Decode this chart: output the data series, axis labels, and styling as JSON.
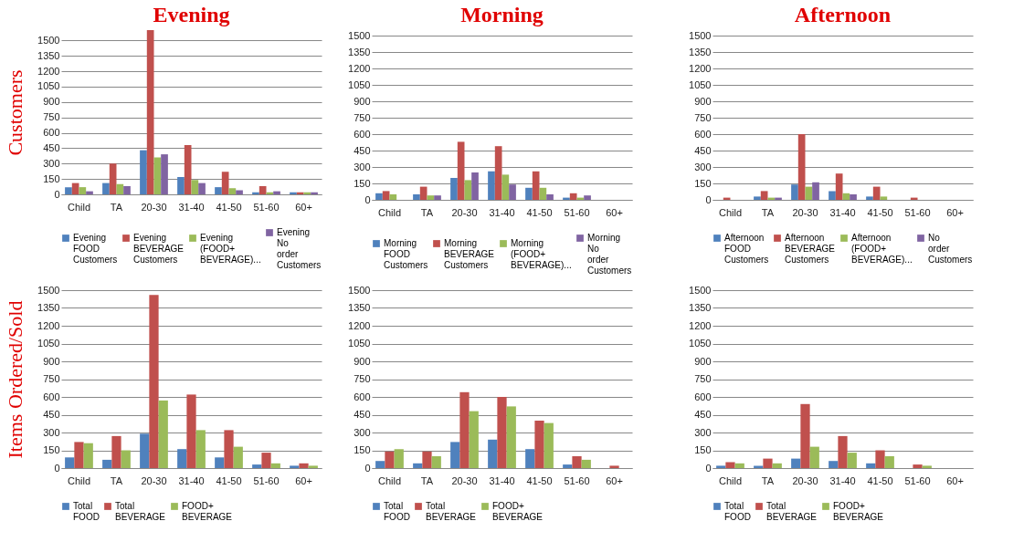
{
  "chart_data": [
    {
      "type": "bar",
      "title": "Evening",
      "ylabel": "Customers",
      "categories": [
        "Child",
        "TA",
        "20-30",
        "31-40",
        "41-50",
        "51-60",
        "60+"
      ],
      "ylim": [
        0,
        1600
      ],
      "yticks": [
        0,
        150,
        300,
        450,
        600,
        750,
        900,
        1050,
        1200,
        1350,
        1500
      ],
      "grid": "y",
      "legend": "bottom",
      "series": [
        {
          "name": "Evening FOOD Customers",
          "color": "#4f81bd",
          "values": [
            70,
            110,
            430,
            170,
            70,
            20,
            20
          ]
        },
        {
          "name": "Evening BEVERAGE Customers",
          "color": "#c0504d",
          "values": [
            110,
            300,
            1600,
            480,
            220,
            80,
            20
          ]
        },
        {
          "name": "Evening (FOOD+ BEVERAGE)...",
          "color": "#9bbb59",
          "values": [
            70,
            100,
            360,
            140,
            60,
            20,
            20
          ]
        },
        {
          "name": "Evening No order Customers",
          "color": "#8064a2",
          "values": [
            30,
            80,
            390,
            110,
            40,
            30,
            20
          ]
        }
      ]
    },
    {
      "type": "bar",
      "title": "Morning",
      "categories": [
        "Child",
        "TA",
        "20-30",
        "31-40",
        "41-50",
        "51-60",
        "60+"
      ],
      "ylim": [
        0,
        1500
      ],
      "yticks": [
        0,
        150,
        300,
        450,
        600,
        750,
        900,
        1050,
        1200,
        1350,
        1500
      ],
      "grid": "y",
      "legend": "bottom",
      "series": [
        {
          "name": "Morning FOOD Customers",
          "color": "#4f81bd",
          "values": [
            60,
            50,
            200,
            260,
            110,
            20,
            0
          ]
        },
        {
          "name": "Morning BEVERAGE Customers",
          "color": "#c0504d",
          "values": [
            80,
            120,
            530,
            490,
            260,
            60,
            0
          ]
        },
        {
          "name": "Morning (FOOD+ BEVERAGE)...",
          "color": "#9bbb59",
          "values": [
            50,
            40,
            180,
            230,
            110,
            20,
            0
          ]
        },
        {
          "name": "Morning No order Customers",
          "color": "#8064a2",
          "values": [
            0,
            40,
            250,
            140,
            50,
            40,
            0
          ]
        }
      ]
    },
    {
      "type": "bar",
      "title": "Afternoon",
      "categories": [
        "Child",
        "TA",
        "20-30",
        "31-40",
        "41-50",
        "51-60",
        "60+"
      ],
      "ylim": [
        0,
        1500
      ],
      "yticks": [
        0,
        150,
        300,
        450,
        600,
        750,
        900,
        1050,
        1200,
        1350,
        1500
      ],
      "grid": "y",
      "legend": "bottom",
      "series": [
        {
          "name": "Afternoon FOOD Customers",
          "color": "#4f81bd",
          "values": [
            0,
            30,
            140,
            80,
            30,
            0,
            0
          ]
        },
        {
          "name": "Afternoon BEVERAGE Customers",
          "color": "#c0504d",
          "values": [
            20,
            80,
            600,
            240,
            120,
            20,
            0
          ]
        },
        {
          "name": "Afternoon (FOOD+ BEVERAGE)...",
          "color": "#9bbb59",
          "values": [
            0,
            20,
            120,
            60,
            30,
            0,
            0
          ]
        },
        {
          "name": "No order Customers",
          "color": "#8064a2",
          "values": [
            0,
            20,
            160,
            50,
            0,
            0,
            0
          ]
        }
      ]
    },
    {
      "type": "bar",
      "ylabel": "Items Ordered/Sold",
      "categories": [
        "Child",
        "TA",
        "20-30",
        "31-40",
        "41-50",
        "51-60",
        "60+"
      ],
      "ylim": [
        0,
        1500
      ],
      "yticks": [
        0,
        150,
        300,
        450,
        600,
        750,
        900,
        1050,
        1200,
        1350,
        1500
      ],
      "grid": "y",
      "legend": "bottom",
      "series": [
        {
          "name": "Total FOOD",
          "color": "#4f81bd",
          "values": [
            90,
            70,
            290,
            160,
            90,
            30,
            20
          ]
        },
        {
          "name": "Total BEVERAGE",
          "color": "#c0504d",
          "values": [
            220,
            270,
            1460,
            620,
            320,
            130,
            40
          ]
        },
        {
          "name": "FOOD+ BEVERAGE",
          "color": "#9bbb59",
          "values": [
            210,
            150,
            570,
            320,
            180,
            40,
            20
          ]
        }
      ]
    },
    {
      "type": "bar",
      "categories": [
        "Child",
        "TA",
        "20-30",
        "31-40",
        "41-50",
        "51-60",
        "60+"
      ],
      "ylim": [
        0,
        1500
      ],
      "yticks": [
        0,
        150,
        300,
        450,
        600,
        750,
        900,
        1050,
        1200,
        1350,
        1500
      ],
      "grid": "y",
      "legend": "bottom",
      "series": [
        {
          "name": "Total FOOD",
          "color": "#4f81bd",
          "values": [
            60,
            40,
            220,
            240,
            160,
            30,
            0
          ]
        },
        {
          "name": "Total BEVERAGE",
          "color": "#c0504d",
          "values": [
            140,
            140,
            640,
            600,
            400,
            100,
            20
          ]
        },
        {
          "name": "FOOD+ BEVERAGE",
          "color": "#9bbb59",
          "values": [
            160,
            100,
            480,
            520,
            380,
            70,
            0
          ]
        }
      ]
    },
    {
      "type": "bar",
      "categories": [
        "Child",
        "TA",
        "20-30",
        "31-40",
        "41-50",
        "51-60",
        "60+"
      ],
      "ylim": [
        0,
        1500
      ],
      "yticks": [
        0,
        150,
        300,
        450,
        600,
        750,
        900,
        1050,
        1200,
        1350,
        1500
      ],
      "grid": "y",
      "legend": "bottom",
      "series": [
        {
          "name": "Total FOOD",
          "color": "#4f81bd",
          "values": [
            20,
            20,
            80,
            60,
            40,
            0,
            0
          ]
        },
        {
          "name": "Total BEVERAGE",
          "color": "#c0504d",
          "values": [
            50,
            80,
            540,
            270,
            150,
            30,
            0
          ]
        },
        {
          "name": "FOOD+ BEVERAGE",
          "color": "#9bbb59",
          "values": [
            40,
            40,
            180,
            130,
            100,
            20,
            0
          ]
        }
      ]
    }
  ]
}
